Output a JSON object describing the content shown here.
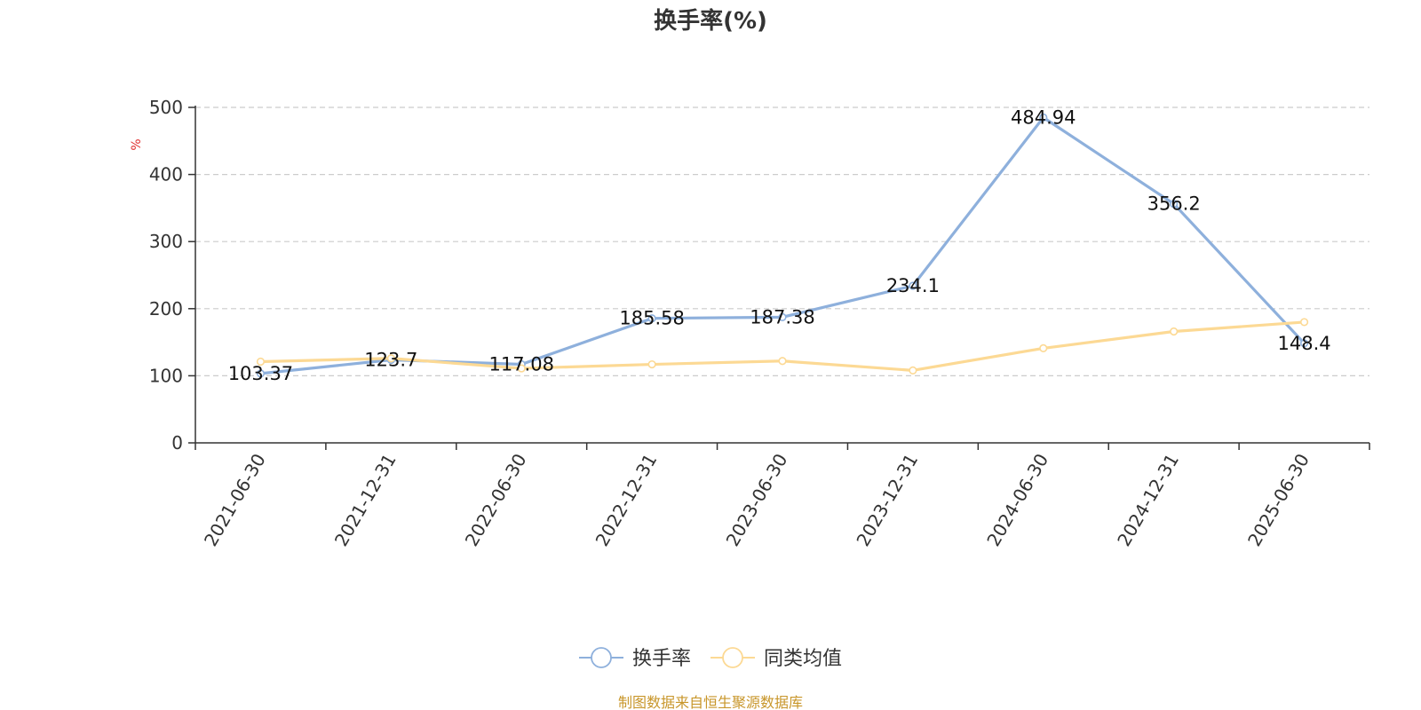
{
  "chart_data": {
    "type": "line",
    "title": "换手率(%)",
    "ylabel": "%",
    "categories": [
      "2021-06-30",
      "2021-12-31",
      "2022-06-30",
      "2022-12-31",
      "2023-06-30",
      "2023-12-31",
      "2024-06-30",
      "2024-12-31",
      "2025-06-30"
    ],
    "y_ticks": [
      "0",
      "100",
      "200",
      "300",
      "400",
      "500"
    ],
    "ylim": [
      0,
      500
    ],
    "grid": true,
    "legend_position": "bottom-center",
    "series": [
      {
        "name": "换手率",
        "color": "#8eb0dc",
        "values": [
          103.37,
          123.7,
          117.08,
          185.58,
          187.38,
          234.1,
          484.94,
          356.2,
          148.4
        ],
        "data_labels": [
          "103.37",
          "123.7",
          "117.08",
          "185.58",
          "187.38",
          "234.1",
          "484.94",
          "356.2",
          "148.4"
        ]
      },
      {
        "name": "同类均值",
        "color": "#fcd994",
        "values": [
          121,
          126,
          111,
          117,
          122,
          108,
          141,
          166,
          180
        ]
      }
    ]
  },
  "colors": {
    "axis": "#333333",
    "grid": "#cccccc",
    "unit": "#e03030",
    "source": "#c8962a"
  },
  "source_note": "制图数据来自恒生聚源数据库"
}
